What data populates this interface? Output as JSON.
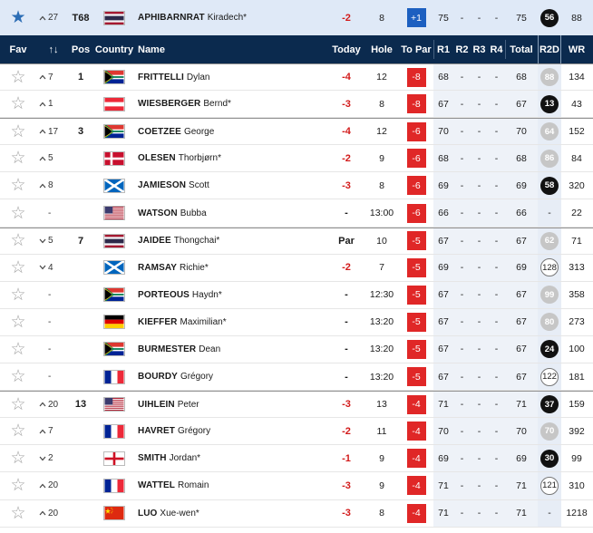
{
  "featured": {
    "movement_dir": "up",
    "movement": "27",
    "pos": "T68",
    "country": "THA",
    "last_name": "APHIBARNRAT",
    "first_name": "Kiradech*",
    "today": "-2",
    "hole": "8",
    "to_par": "+1",
    "r1": "75",
    "r2": "-",
    "r3": "-",
    "r4": "-",
    "total": "75",
    "r2d": "56",
    "r2d_style": "black",
    "wr": "88"
  },
  "headers": {
    "fav": "Fav",
    "sort": "↑↓",
    "pos": "Pos",
    "country": "Country",
    "name": "Name",
    "today": "Today",
    "hole": "Hole",
    "to_par": "To Par",
    "r1": "R1",
    "r2": "R2",
    "r3": "R3",
    "r4": "R4",
    "total": "Total",
    "r2d": "R2D",
    "wr": "WR"
  },
  "players": [
    {
      "group_start": true,
      "movement_dir": "up",
      "movement": "7",
      "pos": "1",
      "country": "RSA",
      "last_name": "FRITTELLI",
      "first_name": "Dylan",
      "today": "-4",
      "hole": "12",
      "to_par": "-8",
      "r1": "68",
      "r2": "-",
      "r3": "-",
      "r4": "-",
      "total": "68",
      "r2d": "88",
      "r2d_style": "grey",
      "wr": "134"
    },
    {
      "group_start": false,
      "movement_dir": "up",
      "movement": "1",
      "pos": "",
      "country": "AUT",
      "last_name": "WIESBERGER",
      "first_name": "Bernd*",
      "today": "-3",
      "hole": "8",
      "to_par": "-8",
      "r1": "67",
      "r2": "-",
      "r3": "-",
      "r4": "-",
      "total": "67",
      "r2d": "13",
      "r2d_style": "black",
      "wr": "43"
    },
    {
      "group_start": true,
      "movement_dir": "up",
      "movement": "17",
      "pos": "3",
      "country": "RSA",
      "last_name": "COETZEE",
      "first_name": "George",
      "today": "-4",
      "hole": "12",
      "to_par": "-6",
      "r1": "70",
      "r2": "-",
      "r3": "-",
      "r4": "-",
      "total": "70",
      "r2d": "64",
      "r2d_style": "grey",
      "wr": "152"
    },
    {
      "group_start": false,
      "movement_dir": "up",
      "movement": "5",
      "pos": "",
      "country": "DEN",
      "last_name": "OLESEN",
      "first_name": "Thorbjørn*",
      "today": "-2",
      "hole": "9",
      "to_par": "-6",
      "r1": "68",
      "r2": "-",
      "r3": "-",
      "r4": "-",
      "total": "68",
      "r2d": "86",
      "r2d_style": "grey",
      "wr": "84"
    },
    {
      "group_start": false,
      "movement_dir": "up",
      "movement": "8",
      "pos": "",
      "country": "SCO",
      "last_name": "JAMIESON",
      "first_name": "Scott",
      "today": "-3",
      "hole": "8",
      "to_par": "-6",
      "r1": "69",
      "r2": "-",
      "r3": "-",
      "r4": "-",
      "total": "69",
      "r2d": "58",
      "r2d_style": "black",
      "wr": "320"
    },
    {
      "group_start": false,
      "movement_dir": "none",
      "movement": "-",
      "pos": "",
      "country": "USA",
      "last_name": "WATSON",
      "first_name": "Bubba",
      "today": "-",
      "hole": "13:00",
      "to_par": "-6",
      "r1": "66",
      "r2": "-",
      "r3": "-",
      "r4": "-",
      "total": "66",
      "r2d": "-",
      "r2d_style": "none",
      "wr": "22"
    },
    {
      "group_start": true,
      "movement_dir": "down",
      "movement": "5",
      "pos": "7",
      "country": "THA",
      "last_name": "JAIDEE",
      "first_name": "Thongchai*",
      "today": "Par",
      "hole": "10",
      "to_par": "-5",
      "r1": "67",
      "r2": "-",
      "r3": "-",
      "r4": "-",
      "total": "67",
      "r2d": "62",
      "r2d_style": "grey",
      "wr": "71"
    },
    {
      "group_start": false,
      "movement_dir": "down",
      "movement": "4",
      "pos": "",
      "country": "SCO",
      "last_name": "RAMSAY",
      "first_name": "Richie*",
      "today": "-2",
      "hole": "7",
      "to_par": "-5",
      "r1": "69",
      "r2": "-",
      "r3": "-",
      "r4": "-",
      "total": "69",
      "r2d": "128",
      "r2d_style": "outline",
      "wr": "313"
    },
    {
      "group_start": false,
      "movement_dir": "none",
      "movement": "-",
      "pos": "",
      "country": "RSA",
      "last_name": "PORTEOUS",
      "first_name": "Haydn*",
      "today": "-",
      "hole": "12:30",
      "to_par": "-5",
      "r1": "67",
      "r2": "-",
      "r3": "-",
      "r4": "-",
      "total": "67",
      "r2d": "99",
      "r2d_style": "grey",
      "wr": "358"
    },
    {
      "group_start": false,
      "movement_dir": "none",
      "movement": "-",
      "pos": "",
      "country": "GER",
      "last_name": "KIEFFER",
      "first_name": "Maximilian*",
      "today": "-",
      "hole": "13:20",
      "to_par": "-5",
      "r1": "67",
      "r2": "-",
      "r3": "-",
      "r4": "-",
      "total": "67",
      "r2d": "80",
      "r2d_style": "grey",
      "wr": "273"
    },
    {
      "group_start": false,
      "movement_dir": "none",
      "movement": "-",
      "pos": "",
      "country": "RSA",
      "last_name": "BURMESTER",
      "first_name": "Dean",
      "today": "-",
      "hole": "13:20",
      "to_par": "-5",
      "r1": "67",
      "r2": "-",
      "r3": "-",
      "r4": "-",
      "total": "67",
      "r2d": "24",
      "r2d_style": "black",
      "wr": "100"
    },
    {
      "group_start": false,
      "movement_dir": "none",
      "movement": "-",
      "pos": "",
      "country": "FRA",
      "last_name": "BOURDY",
      "first_name": "Grégory",
      "today": "-",
      "hole": "13:20",
      "to_par": "-5",
      "r1": "67",
      "r2": "-",
      "r3": "-",
      "r4": "-",
      "total": "67",
      "r2d": "122",
      "r2d_style": "outline",
      "wr": "181"
    },
    {
      "group_start": true,
      "movement_dir": "up",
      "movement": "20",
      "pos": "13",
      "country": "USA",
      "last_name": "UIHLEIN",
      "first_name": "Peter",
      "today": "-3",
      "hole": "13",
      "to_par": "-4",
      "r1": "71",
      "r2": "-",
      "r3": "-",
      "r4": "-",
      "total": "71",
      "r2d": "37",
      "r2d_style": "black",
      "wr": "159"
    },
    {
      "group_start": false,
      "movement_dir": "up",
      "movement": "7",
      "pos": "",
      "country": "FRA",
      "last_name": "HAVRET",
      "first_name": "Grégory",
      "today": "-2",
      "hole": "11",
      "to_par": "-4",
      "r1": "70",
      "r2": "-",
      "r3": "-",
      "r4": "-",
      "total": "70",
      "r2d": "70",
      "r2d_style": "grey",
      "wr": "392"
    },
    {
      "group_start": false,
      "movement_dir": "down",
      "movement": "2",
      "pos": "",
      "country": "ENG",
      "last_name": "SMITH",
      "first_name": "Jordan*",
      "today": "-1",
      "hole": "9",
      "to_par": "-4",
      "r1": "69",
      "r2": "-",
      "r3": "-",
      "r4": "-",
      "total": "69",
      "r2d": "30",
      "r2d_style": "black",
      "wr": "99"
    },
    {
      "group_start": false,
      "movement_dir": "up",
      "movement": "20",
      "pos": "",
      "country": "FRA",
      "last_name": "WATTEL",
      "first_name": "Romain",
      "today": "-3",
      "hole": "9",
      "to_par": "-4",
      "r1": "71",
      "r2": "-",
      "r3": "-",
      "r4": "-",
      "total": "71",
      "r2d": "121",
      "r2d_style": "outline",
      "wr": "310"
    },
    {
      "group_start": false,
      "movement_dir": "up",
      "movement": "20",
      "pos": "",
      "country": "CHN",
      "last_name": "LUO",
      "first_name": "Xue-wen*",
      "today": "-3",
      "hole": "8",
      "to_par": "-4",
      "r1": "71",
      "r2": "-",
      "r3": "-",
      "r4": "-",
      "total": "71",
      "r2d": "-",
      "r2d_style": "none",
      "wr": "1218"
    }
  ],
  "colors": {
    "header_bg": "#0b2a4e",
    "featured_bg": "#dfe9f7",
    "under_par": "#e02727",
    "over_par": "#1c5fc0",
    "star_active": "#2c6db5"
  }
}
